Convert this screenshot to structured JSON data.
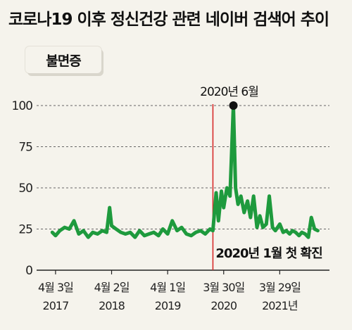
{
  "chart_data": {
    "type": "line",
    "title": "코로나19 이후 정신건강 관련 네이버 검색어 추이",
    "series": [
      {
        "name": "불면증",
        "color": "#1e9a3d",
        "x": [
          "2017-03-13",
          "2017-04-03",
          "2017-05-01",
          "2017-06-01",
          "2017-07-01",
          "2017-08-01",
          "2017-09-01",
          "2017-10-01",
          "2017-11-01",
          "2017-12-01",
          "2018-01-01",
          "2018-02-01",
          "2018-03-01",
          "2018-03-20",
          "2018-04-02",
          "2018-05-01",
          "2018-06-01",
          "2018-07-01",
          "2018-08-01",
          "2018-09-01",
          "2018-10-01",
          "2018-11-01",
          "2018-12-01",
          "2019-01-01",
          "2019-02-01",
          "2019-03-01",
          "2019-04-01",
          "2019-05-01",
          "2019-06-01",
          "2019-07-01",
          "2019-08-01",
          "2019-09-01",
          "2019-10-01",
          "2019-11-01",
          "2019-12-01",
          "2020-01-01",
          "2020-01-20",
          "2020-02-10",
          "2020-02-25",
          "2020-03-15",
          "2020-03-30",
          "2020-04-20",
          "2020-05-10",
          "2020-06-01",
          "2020-06-15",
          "2020-07-01",
          "2020-07-20",
          "2020-08-10",
          "2020-09-01",
          "2020-09-20",
          "2020-10-10",
          "2020-11-01",
          "2020-11-20",
          "2020-12-10",
          "2021-01-01",
          "2021-01-20",
          "2021-02-10",
          "2021-03-01",
          "2021-03-29",
          "2021-04-20",
          "2021-05-10",
          "2021-06-01",
          "2021-06-20",
          "2021-07-10",
          "2021-08-01",
          "2021-08-20",
          "2021-09-10",
          "2021-10-01",
          "2021-10-20",
          "2021-11-10",
          "2021-12-01"
        ],
        "values": [
          23,
          21,
          24,
          26,
          25,
          30,
          22,
          24,
          20,
          23,
          22,
          24,
          23,
          38,
          27,
          25,
          23,
          22,
          23,
          20,
          24,
          21,
          22,
          23,
          21,
          25,
          22,
          30,
          24,
          26,
          22,
          21,
          23,
          24,
          22,
          25,
          24,
          47,
          30,
          48,
          38,
          50,
          45,
          100,
          50,
          40,
          45,
          35,
          42,
          32,
          45,
          26,
          33,
          26,
          28,
          45,
          26,
          24,
          28,
          23,
          24,
          22,
          24,
          23,
          21,
          23,
          22,
          20,
          32,
          25,
          24
        ]
      }
    ],
    "xticks": [
      {
        "date": "2017-04-03",
        "line1": "4월 3일",
        "line2": "2017"
      },
      {
        "date": "2018-04-02",
        "line1": "4월 2일",
        "line2": "2018"
      },
      {
        "date": "2019-04-01",
        "line1": "4월 1일",
        "line2": "2019"
      },
      {
        "date": "2020-03-30",
        "line1": "3월 30일",
        "line2": "2020"
      },
      {
        "date": "2021-03-29",
        "line1": "3월 29일",
        "line2": "2021년"
      }
    ],
    "yticks": [
      0,
      25,
      50,
      75,
      100
    ],
    "ylim": [
      0,
      100
    ],
    "xlim": [
      "2016-12-01",
      "2022-02-15"
    ],
    "grid": true,
    "annotations": {
      "peak": {
        "label": "2020년 6월",
        "date": "2020-06-01",
        "value": 100
      },
      "first_case": {
        "label": "2020년 1월 첫 확진",
        "date": "2020-01-20",
        "color": "#d62b2b"
      }
    }
  }
}
